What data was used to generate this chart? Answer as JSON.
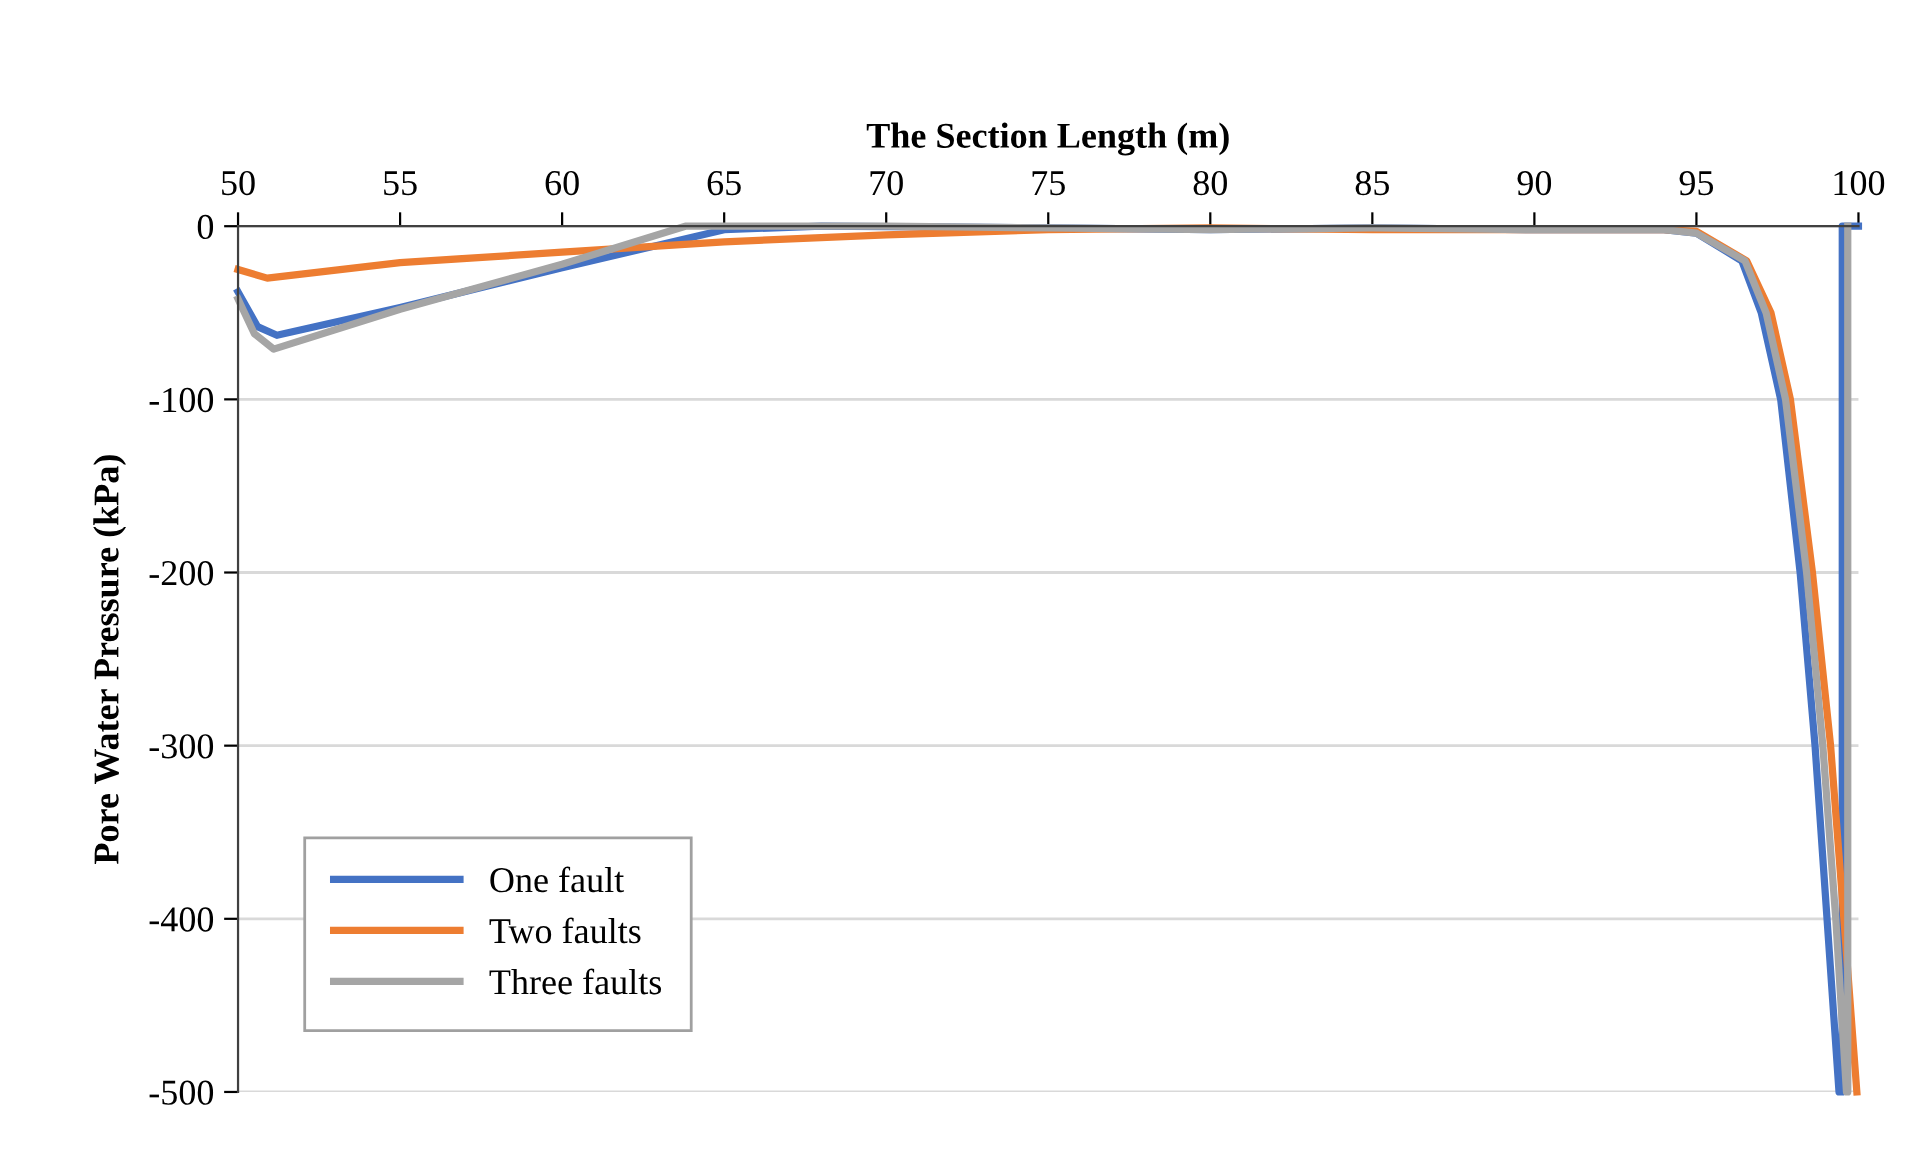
{
  "chart_data": {
    "type": "line",
    "xlabel": "The Section Length (m)",
    "ylabel": "Pore Water Pressure (kPa)",
    "xlim": [
      50,
      100
    ],
    "xticks": [
      50,
      55,
      60,
      65,
      70,
      75,
      80,
      85,
      90,
      95,
      100
    ],
    "ylim": [
      -500,
      0
    ],
    "yticks": [
      -500,
      -400,
      -300,
      -200,
      -100,
      0
    ],
    "grid": "y",
    "legend": "bottom left",
    "line_style": "solid",
    "marker": "none",
    "series": [
      {
        "name": "One fault",
        "color": "#4472c4",
        "x": [
          50,
          50.6,
          51.2,
          55,
          60,
          65,
          68,
          75,
          80,
          85,
          90,
          94,
          95,
          96.4,
          97,
          97.6,
          98.2,
          98.66,
          99.03,
          99.4,
          99.5,
          99.5,
          100
        ],
        "values": [
          -38,
          -58,
          -63,
          -47,
          -24,
          -2,
          0,
          -1,
          -2,
          -1,
          -2,
          -2,
          -4,
          -20,
          -50,
          -100,
          -200,
          -300,
          -400,
          -500,
          -500,
          0,
          0
        ]
      },
      {
        "name": "Two faults",
        "color": "#ed7d31",
        "x": [
          50,
          50.9,
          55,
          60,
          65,
          70,
          75,
          80,
          85,
          90,
          94,
          95,
          96.55,
          97.3,
          97.9,
          98.58,
          99.14,
          99.55,
          99.95
        ],
        "values": [
          -25,
          -30,
          -21,
          -15,
          -9,
          -5,
          -2,
          -1,
          -2,
          -2,
          -2,
          -3,
          -20,
          -50,
          -100,
          -200,
          -300,
          -400,
          -500
        ]
      },
      {
        "name": "Three faults",
        "color": "#a5a5a5",
        "x": [
          50,
          50.5,
          51.1,
          55,
          60,
          63.8,
          65,
          66.9,
          70,
          75,
          80,
          85,
          90,
          94,
          95,
          96.5,
          97.15,
          97.75,
          98.4,
          98.9,
          99.3,
          99.63,
          99.67,
          99.67
        ],
        "values": [
          -42,
          -62,
          -71,
          -48,
          -22,
          0,
          0,
          0,
          0,
          -1,
          -2,
          -1,
          -2,
          -2,
          -4,
          -20,
          -50,
          -100,
          -200,
          -300,
          -400,
          -500,
          -500,
          0
        ]
      }
    ]
  }
}
